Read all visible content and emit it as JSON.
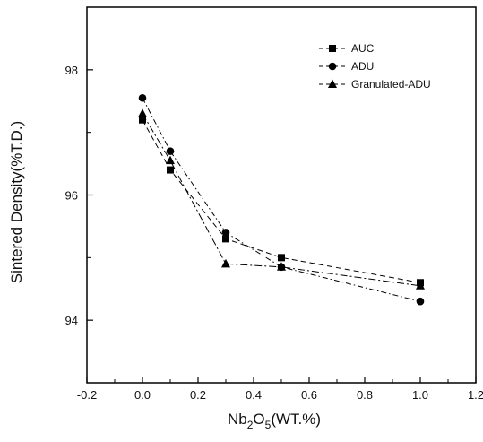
{
  "chart_data": {
    "type": "line",
    "xlabel": {
      "base": "Nb",
      "sub1": "2",
      "mid": "O",
      "sub2": "5",
      "tail": "(WT.%)"
    },
    "ylabel": "Sintered Density(%T.D.)",
    "xlim": [
      -0.2,
      1.2
    ],
    "ylim": [
      93.0,
      99.0
    ],
    "xticks": [
      "-0.2",
      "0.0",
      "0.2",
      "0.4",
      "0.6",
      "0.8",
      "1.0",
      "1.2"
    ],
    "yticks": [
      "94",
      "96",
      "98"
    ],
    "legend_position": "top-right",
    "series": [
      {
        "name": "AUC",
        "marker": "square",
        "dash": "6,4",
        "x": [
          0.0,
          0.1,
          0.3,
          0.5,
          1.0
        ],
        "y": [
          97.2,
          96.4,
          95.3,
          95.0,
          94.6
        ]
      },
      {
        "name": "ADU",
        "marker": "circle",
        "dash": "6,3,1.5,3",
        "x": [
          0.0,
          0.1,
          0.3,
          0.5,
          1.0
        ],
        "y": [
          97.55,
          96.7,
          95.4,
          94.85,
          94.3
        ]
      },
      {
        "name": "Granulated-ADU",
        "marker": "triangle",
        "dash": "8,3,2,3",
        "x": [
          0.0,
          0.1,
          0.3,
          0.5,
          1.0
        ],
        "y": [
          97.3,
          96.55,
          94.9,
          94.85,
          94.55
        ]
      }
    ]
  }
}
